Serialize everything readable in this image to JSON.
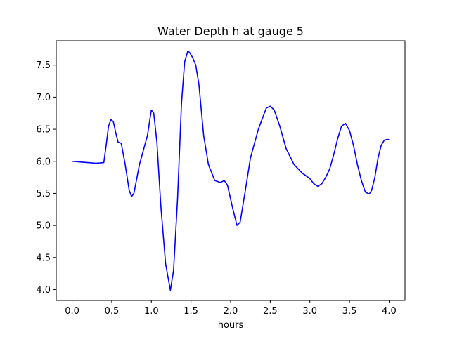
{
  "chart_data": {
    "type": "line",
    "title": "Water Depth h at gauge 5",
    "xlabel": "hours",
    "ylabel": "",
    "xlim": [
      -0.2,
      4.2
    ],
    "ylim": [
      3.83,
      7.88
    ],
    "grid": false,
    "x_ticks": [
      0.0,
      0.5,
      1.0,
      1.5,
      2.0,
      2.5,
      3.0,
      3.5,
      4.0
    ],
    "x_tick_labels": [
      "0.0",
      "0.5",
      "1.0",
      "1.5",
      "2.0",
      "2.5",
      "3.0",
      "3.5",
      "4.0"
    ],
    "y_ticks": [
      4.0,
      4.5,
      5.0,
      5.5,
      6.0,
      6.5,
      7.0,
      7.5
    ],
    "y_tick_labels": [
      "4.0",
      "4.5",
      "5.0",
      "5.5",
      "6.0",
      "6.5",
      "7.0",
      "7.5"
    ],
    "series": [
      {
        "color": "#0000ff",
        "x": [
          0.0,
          0.1,
          0.2,
          0.3,
          0.4,
          0.43,
          0.46,
          0.49,
          0.52,
          0.55,
          0.58,
          0.62,
          0.67,
          0.72,
          0.75,
          0.78,
          0.85,
          0.95,
          1.0,
          1.03,
          1.07,
          1.12,
          1.18,
          1.24,
          1.28,
          1.33,
          1.38,
          1.42,
          1.46,
          1.48,
          1.52,
          1.56,
          1.6,
          1.66,
          1.72,
          1.8,
          1.87,
          1.92,
          1.96,
          2.02,
          2.08,
          2.12,
          2.18,
          2.25,
          2.35,
          2.45,
          2.5,
          2.55,
          2.62,
          2.7,
          2.8,
          2.9,
          3.0,
          3.05,
          3.1,
          3.15,
          3.2,
          3.25,
          3.3,
          3.35,
          3.4,
          3.45,
          3.5,
          3.55,
          3.6,
          3.65,
          3.7,
          3.75,
          3.78,
          3.82,
          3.86,
          3.9,
          3.94,
          3.97,
          4.0
        ],
        "values": [
          6.0,
          5.99,
          5.98,
          5.97,
          5.98,
          6.25,
          6.55,
          6.65,
          6.62,
          6.45,
          6.3,
          6.28,
          5.95,
          5.55,
          5.45,
          5.5,
          5.95,
          6.4,
          6.8,
          6.75,
          6.3,
          5.3,
          4.4,
          3.99,
          4.3,
          5.4,
          6.9,
          7.55,
          7.72,
          7.7,
          7.62,
          7.5,
          7.2,
          6.4,
          5.95,
          5.7,
          5.67,
          5.7,
          5.63,
          5.3,
          5.0,
          5.05,
          5.5,
          6.05,
          6.5,
          6.83,
          6.86,
          6.8,
          6.55,
          6.2,
          5.95,
          5.82,
          5.73,
          5.65,
          5.61,
          5.65,
          5.75,
          5.88,
          6.1,
          6.35,
          6.55,
          6.59,
          6.48,
          6.25,
          5.95,
          5.7,
          5.52,
          5.49,
          5.55,
          5.75,
          6.05,
          6.25,
          6.33,
          6.34,
          6.34
        ]
      }
    ]
  }
}
